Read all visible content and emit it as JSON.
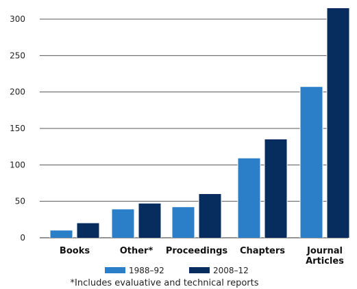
{
  "chart_data": {
    "type": "bar",
    "categories": [
      "Books",
      "Other*",
      "Proceedings",
      "Chapters",
      [
        "Journal",
        "Articles"
      ]
    ],
    "series": [
      {
        "name": "1988–92",
        "color": "#2b7fc8",
        "values": [
          10,
          39,
          42,
          109,
          207
        ]
      },
      {
        "name": "2008–12",
        "color": "#062d5e",
        "values": [
          20,
          47,
          60,
          135,
          315
        ]
      }
    ],
    "y_ticks": [
      0,
      50,
      100,
      150,
      200,
      250,
      300
    ],
    "ylim": [
      0,
      320
    ],
    "grid": true,
    "legend_position": "bottom",
    "footnote": "*Includes evaluative and technical reports"
  }
}
